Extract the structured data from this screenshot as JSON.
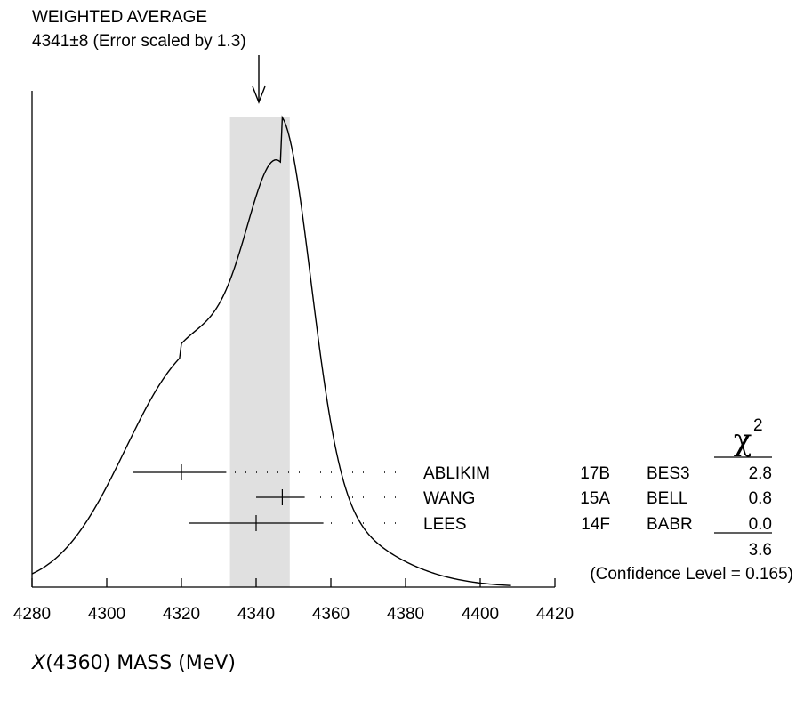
{
  "chart_data": {
    "type": "ideogram",
    "title_line1": "WEIGHTED AVERAGE",
    "title_line2": "4341±8 (Error scaled by 1.3)",
    "weighted_average": {
      "value": 4341,
      "error": 8,
      "scale_factor": 1.3
    },
    "xlabel": "X(4360) MASS (MeV)",
    "xlabel_parts": {
      "symbol": "X",
      "rest": "(4360) MASS (MeV)"
    },
    "xlim": [
      4280,
      4420
    ],
    "xticks": [
      4280,
      4300,
      4320,
      4340,
      4360,
      4380,
      4400,
      4420
    ],
    "xtick_labels": [
      "4280",
      "4300",
      "4320",
      "4340",
      "4360",
      "4380",
      "4400",
      "4420"
    ],
    "measurements": [
      {
        "author": "ABLIKIM",
        "ref": "17B",
        "experiment": "BES3",
        "value": 4320,
        "err_low": 13,
        "err_high": 12,
        "chi2": "2.8"
      },
      {
        "author": "WANG",
        "ref": "15A",
        "experiment": "BELL",
        "value": 4347,
        "err_low": 7,
        "err_high": 6,
        "chi2": "0.8"
      },
      {
        "author": "LEES",
        "ref": "14F",
        "experiment": "BABR",
        "value": 4340,
        "err_low": 18,
        "err_high": 18,
        "chi2": "0.0"
      }
    ],
    "chi2_header": "χ",
    "chi2_superscript": "2",
    "chi2_total": "3.6",
    "confidence_level": "(Confidence Level = 0.165)",
    "band_color": "#e0e0e0"
  }
}
